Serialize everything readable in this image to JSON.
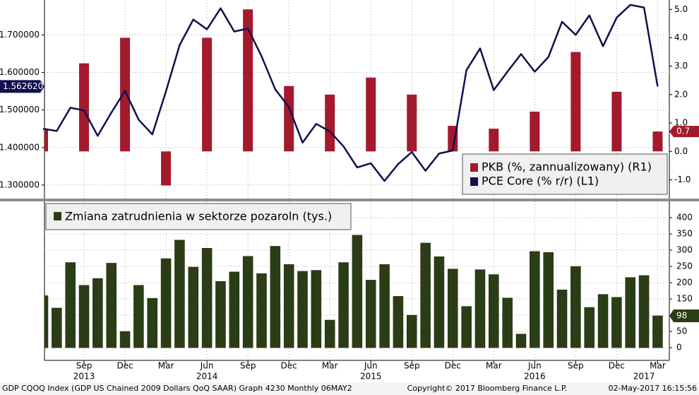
{
  "chart_data": [
    {
      "type": "bar_line",
      "ylim": [
        1.264,
        1.793
      ],
      "yticks": [
        {
          "value": 1.3,
          "label": "1.300000"
        },
        {
          "value": 1.4,
          "label": "1.400000"
        },
        {
          "value": 1.5,
          "label": "1.500000"
        },
        {
          "value": 1.6,
          "label": "1.600000"
        },
        {
          "value": 1.7,
          "label": "1.700000"
        }
      ],
      "y2lim": [
        -1.66,
        5.33
      ],
      "y2ticks": [
        {
          "value": -1,
          "label": "-1.0"
        },
        {
          "value": 0,
          "label": "0.0"
        },
        {
          "value": 1,
          "label": "1.0"
        },
        {
          "value": 2,
          "label": "2.0"
        },
        {
          "value": 3,
          "label": "3.0"
        },
        {
          "value": 4,
          "label": "4.0"
        },
        {
          "value": 5,
          "label": "5.0"
        }
      ],
      "grid": true,
      "legend": "bottom-right",
      "series": [
        {
          "name": "PKB (%, zannualizowany) (R1)",
          "color": "#a31a2c",
          "axis": "y2",
          "type": "bar",
          "values": [
            0.8,
            null,
            null,
            3.1,
            null,
            null,
            4.0,
            null,
            null,
            -1.2,
            null,
            null,
            4.0,
            null,
            null,
            5.0,
            null,
            null,
            2.3,
            null,
            null,
            2.0,
            null,
            null,
            2.6,
            null,
            null,
            2.0,
            null,
            null,
            0.9,
            null,
            null,
            0.8,
            null,
            null,
            1.4,
            null,
            null,
            3.5,
            null,
            null,
            2.1,
            null,
            null,
            0.7
          ]
        },
        {
          "name": "PCE Core (% r/r) (L1)",
          "color": "#10104e",
          "type": "line",
          "last_label": "1.562620",
          "values": [
            1.45,
            1.444,
            1.506,
            1.499,
            1.431,
            1.493,
            1.551,
            1.474,
            1.435,
            1.55,
            1.673,
            1.741,
            1.715,
            1.771,
            1.709,
            1.717,
            1.643,
            1.555,
            1.508,
            1.413,
            1.463,
            1.443,
            1.403,
            1.347,
            1.358,
            1.311,
            1.356,
            1.388,
            1.338,
            1.384,
            1.392,
            1.606,
            1.664,
            1.553,
            1.602,
            1.649,
            1.602,
            1.641,
            1.735,
            1.7,
            1.752,
            1.67,
            1.746,
            1.78,
            1.773,
            1.56262
          ]
        }
      ]
    },
    {
      "type": "bar",
      "categories": [
        null,
        null,
        null,
        "Sep",
        null,
        null,
        "Dec",
        null,
        null,
        "Mar",
        null,
        null,
        "Jun",
        null,
        null,
        "Sep",
        null,
        null,
        "Dec",
        null,
        null,
        "Mar",
        null,
        null,
        "Jun",
        null,
        null,
        "Sep",
        null,
        null,
        "Dec",
        null,
        null,
        "Mar",
        null,
        null,
        "Jun",
        null,
        null,
        "Sep",
        null,
        null,
        "Dec",
        null,
        null,
        "Mar"
      ],
      "years": [
        null,
        null,
        null,
        "2013",
        null,
        null,
        null,
        null,
        null,
        null,
        null,
        null,
        "2014",
        null,
        null,
        null,
        null,
        null,
        null,
        null,
        null,
        null,
        null,
        null,
        "2015",
        null,
        null,
        null,
        null,
        null,
        null,
        null,
        null,
        null,
        null,
        null,
        "2016",
        null,
        null,
        null,
        null,
        null,
        null,
        null,
        "2017",
        null
      ],
      "ylim": [
        -39,
        450
      ],
      "yticks": [
        0,
        50,
        100,
        150,
        200,
        250,
        300,
        350,
        400
      ],
      "grid": true,
      "legend": "top-left",
      "series": [
        {
          "name": "Zmiana zatrudnienia w sektorze pozaroln (tys.)",
          "color": "#2b3d14",
          "values": [
            160,
            122,
            262,
            192,
            213,
            260,
            50,
            192,
            152,
            274,
            331,
            248,
            306,
            204,
            233,
            281,
            228,
            312,
            256,
            235,
            238,
            85,
            262,
            346,
            208,
            256,
            158,
            100,
            322,
            280,
            242,
            127,
            240,
            225,
            153,
            42,
            296,
            293,
            178,
            250,
            124,
            164,
            155,
            216,
            222,
            98
          ]
        }
      ]
    }
  ],
  "footer": {
    "left": "GDP CQOQ Index (GDP US Chained 2009 Dollars QoQ SAAR) Graph 4230  Monthly 06MAY2",
    "center": "Copyright© 2017 Bloomberg Finance L.P.",
    "right": "02-May-2017 16:15:56"
  }
}
